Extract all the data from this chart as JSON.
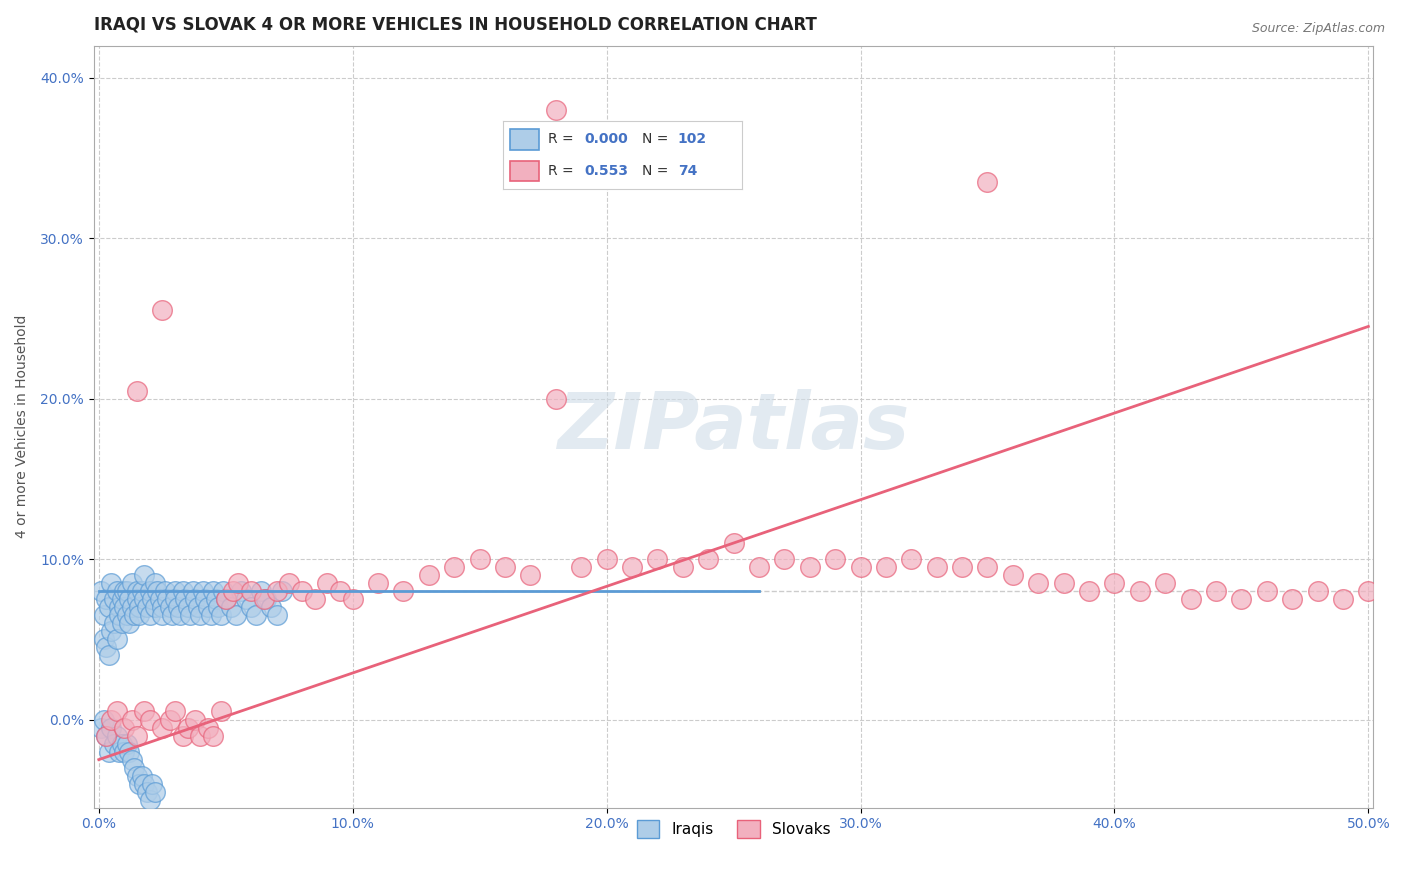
{
  "title": "IRAQI VS SLOVAK 4 OR MORE VEHICLES IN HOUSEHOLD CORRELATION CHART",
  "source_text": "Source: ZipAtlas.com",
  "xlim": [
    -0.002,
    0.502
  ],
  "ylim": [
    -0.055,
    0.42
  ],
  "ylabel": "4 or more Vehicles in Household",
  "iraqi_R": "0.000",
  "iraqi_N": "102",
  "slovak_R": "0.553",
  "slovak_N": "74",
  "iraqi_color": "#5b9bd5",
  "slovak_color": "#e8627a",
  "iraqi_scatter_color": "#aecde8",
  "slovak_scatter_color": "#f2b0bf",
  "grid_color": "#cccccc",
  "watermark_text": "ZIPatlas",
  "background_color": "#ffffff",
  "title_fontsize": 12,
  "label_fontsize": 10,
  "tick_fontsize": 10,
  "iraqi_scatter_x": [
    0.001,
    0.002,
    0.002,
    0.003,
    0.003,
    0.004,
    0.004,
    0.005,
    0.005,
    0.006,
    0.006,
    0.007,
    0.007,
    0.008,
    0.008,
    0.009,
    0.009,
    0.01,
    0.01,
    0.011,
    0.011,
    0.012,
    0.012,
    0.013,
    0.013,
    0.014,
    0.015,
    0.015,
    0.016,
    0.016,
    0.017,
    0.018,
    0.018,
    0.019,
    0.02,
    0.02,
    0.021,
    0.022,
    0.022,
    0.023,
    0.024,
    0.025,
    0.025,
    0.026,
    0.027,
    0.028,
    0.029,
    0.03,
    0.03,
    0.031,
    0.032,
    0.033,
    0.034,
    0.035,
    0.036,
    0.037,
    0.038,
    0.039,
    0.04,
    0.041,
    0.042,
    0.043,
    0.044,
    0.045,
    0.046,
    0.047,
    0.048,
    0.049,
    0.05,
    0.052,
    0.054,
    0.056,
    0.058,
    0.06,
    0.062,
    0.064,
    0.066,
    0.068,
    0.07,
    0.072,
    0.001,
    0.002,
    0.003,
    0.004,
    0.005,
    0.006,
    0.007,
    0.008,
    0.009,
    0.01,
    0.011,
    0.012,
    0.013,
    0.014,
    0.015,
    0.016,
    0.017,
    0.018,
    0.019,
    0.02,
    0.021,
    0.022
  ],
  "iraqi_scatter_y": [
    0.08,
    0.065,
    0.05,
    0.075,
    0.045,
    0.07,
    0.04,
    0.085,
    0.055,
    0.075,
    0.06,
    0.08,
    0.05,
    0.07,
    0.065,
    0.06,
    0.075,
    0.08,
    0.07,
    0.065,
    0.08,
    0.075,
    0.06,
    0.07,
    0.085,
    0.065,
    0.08,
    0.075,
    0.07,
    0.065,
    0.08,
    0.075,
    0.09,
    0.07,
    0.08,
    0.065,
    0.075,
    0.07,
    0.085,
    0.08,
    0.075,
    0.07,
    0.065,
    0.08,
    0.075,
    0.07,
    0.065,
    0.08,
    0.075,
    0.07,
    0.065,
    0.08,
    0.075,
    0.07,
    0.065,
    0.08,
    0.075,
    0.07,
    0.065,
    0.08,
    0.075,
    0.07,
    0.065,
    0.08,
    0.075,
    0.07,
    0.065,
    0.08,
    0.075,
    0.07,
    0.065,
    0.08,
    0.075,
    0.07,
    0.065,
    0.08,
    0.075,
    0.07,
    0.065,
    0.08,
    -0.005,
    0.0,
    -0.01,
    -0.02,
    -0.005,
    -0.015,
    -0.01,
    -0.02,
    -0.015,
    -0.02,
    -0.015,
    -0.02,
    -0.025,
    -0.03,
    -0.035,
    -0.04,
    -0.035,
    -0.04,
    -0.045,
    -0.05,
    -0.04,
    -0.045
  ],
  "slovak_scatter_x": [
    0.003,
    0.005,
    0.007,
    0.01,
    0.013,
    0.015,
    0.018,
    0.02,
    0.025,
    0.028,
    0.03,
    0.033,
    0.035,
    0.038,
    0.04,
    0.043,
    0.045,
    0.048,
    0.05,
    0.053,
    0.055,
    0.06,
    0.065,
    0.07,
    0.075,
    0.08,
    0.085,
    0.09,
    0.095,
    0.1,
    0.11,
    0.12,
    0.13,
    0.14,
    0.15,
    0.16,
    0.17,
    0.18,
    0.19,
    0.2,
    0.21,
    0.22,
    0.23,
    0.24,
    0.25,
    0.26,
    0.27,
    0.28,
    0.29,
    0.3,
    0.31,
    0.32,
    0.33,
    0.34,
    0.35,
    0.36,
    0.37,
    0.38,
    0.39,
    0.4,
    0.41,
    0.42,
    0.43,
    0.44,
    0.45,
    0.46,
    0.47,
    0.48,
    0.49,
    0.5,
    0.015,
    0.025,
    0.18,
    0.35
  ],
  "slovak_scatter_y": [
    -0.01,
    0.0,
    0.005,
    -0.005,
    0.0,
    -0.01,
    0.005,
    0.0,
    -0.005,
    0.0,
    0.005,
    -0.01,
    -0.005,
    0.0,
    -0.01,
    -0.005,
    -0.01,
    0.005,
    0.075,
    0.08,
    0.085,
    0.08,
    0.075,
    0.08,
    0.085,
    0.08,
    0.075,
    0.085,
    0.08,
    0.075,
    0.085,
    0.08,
    0.09,
    0.095,
    0.1,
    0.095,
    0.09,
    0.2,
    0.095,
    0.1,
    0.095,
    0.1,
    0.095,
    0.1,
    0.11,
    0.095,
    0.1,
    0.095,
    0.1,
    0.095,
    0.095,
    0.1,
    0.095,
    0.095,
    0.095,
    0.09,
    0.085,
    0.085,
    0.08,
    0.085,
    0.08,
    0.085,
    0.075,
    0.08,
    0.075,
    0.08,
    0.075,
    0.08,
    0.075,
    0.08,
    0.205,
    0.255,
    0.38,
    0.335
  ],
  "iraqi_line_x": [
    0.0,
    0.26
  ],
  "iraqi_line_y": [
    0.08,
    0.08
  ],
  "slovak_line_x": [
    0.0,
    0.5
  ],
  "slovak_line_y": [
    -0.025,
    0.245
  ],
  "dashed_line_y": 0.08
}
